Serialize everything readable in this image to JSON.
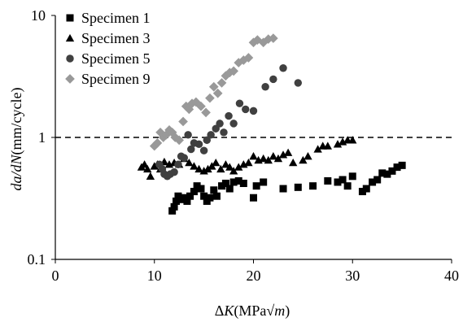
{
  "chart_data": {
    "type": "scatter",
    "xlabel": {
      "prefix": "Δ",
      "var": "K",
      "unit_open": "(MPa",
      "root": "√",
      "root_var": "m",
      "unit_close": ")"
    },
    "ylabel": {
      "var": "da/dN",
      "unit": "(mm/cycle)"
    },
    "xlim": [
      0,
      40
    ],
    "ylim": [
      0.1,
      10
    ],
    "y_scale": "log",
    "x_ticks": [
      "0",
      "10",
      "20",
      "30",
      "40"
    ],
    "y_ticks": [
      "0.1",
      "1",
      "10"
    ],
    "grid": false,
    "legend_position": "top-left",
    "reference_line": {
      "y": 1,
      "style": "dashed",
      "color": "#000000"
    },
    "series": [
      {
        "name": "Specimen 1",
        "marker": "square",
        "color": "#000000",
        "points": [
          [
            11.8,
            0.25
          ],
          [
            12.0,
            0.27
          ],
          [
            12.2,
            0.3
          ],
          [
            12.4,
            0.33
          ],
          [
            12.7,
            0.31
          ],
          [
            13.0,
            0.32
          ],
          [
            13.3,
            0.3
          ],
          [
            13.6,
            0.33
          ],
          [
            14.0,
            0.36
          ],
          [
            14.3,
            0.4
          ],
          [
            14.7,
            0.38
          ],
          [
            15.0,
            0.33
          ],
          [
            15.3,
            0.3
          ],
          [
            15.6,
            0.32
          ],
          [
            16.0,
            0.37
          ],
          [
            16.3,
            0.33
          ],
          [
            16.8,
            0.4
          ],
          [
            17.2,
            0.42
          ],
          [
            17.6,
            0.38
          ],
          [
            18.0,
            0.43
          ],
          [
            18.5,
            0.44
          ],
          [
            19.0,
            0.42
          ],
          [
            20.0,
            0.32
          ],
          [
            20.3,
            0.4
          ],
          [
            21.0,
            0.43
          ],
          [
            23.0,
            0.38
          ],
          [
            24.5,
            0.39
          ],
          [
            26.0,
            0.4
          ],
          [
            27.5,
            0.44
          ],
          [
            28.5,
            0.43
          ],
          [
            29.0,
            0.45
          ],
          [
            29.5,
            0.4
          ],
          [
            30.0,
            0.48
          ],
          [
            31.0,
            0.36
          ],
          [
            31.4,
            0.38
          ],
          [
            32.0,
            0.43
          ],
          [
            32.5,
            0.45
          ],
          [
            33.0,
            0.51
          ],
          [
            33.5,
            0.5
          ],
          [
            34.0,
            0.53
          ],
          [
            34.5,
            0.57
          ],
          [
            35.0,
            0.59
          ]
        ]
      },
      {
        "name": "Specimen 3",
        "marker": "triangle",
        "color": "#000000",
        "points": [
          [
            8.7,
            0.57
          ],
          [
            9.0,
            0.6
          ],
          [
            9.3,
            0.55
          ],
          [
            9.6,
            0.48
          ],
          [
            10.0,
            0.58
          ],
          [
            10.3,
            0.6
          ],
          [
            10.6,
            0.55
          ],
          [
            11.0,
            0.63
          ],
          [
            11.5,
            0.6
          ],
          [
            12.0,
            0.62
          ],
          [
            12.5,
            0.6
          ],
          [
            13.0,
            0.67
          ],
          [
            13.5,
            0.62
          ],
          [
            14.0,
            0.58
          ],
          [
            14.5,
            0.55
          ],
          [
            15.0,
            0.53
          ],
          [
            15.4,
            0.55
          ],
          [
            15.8,
            0.58
          ],
          [
            16.2,
            0.62
          ],
          [
            16.7,
            0.55
          ],
          [
            17.2,
            0.6
          ],
          [
            17.6,
            0.57
          ],
          [
            18.0,
            0.53
          ],
          [
            18.5,
            0.57
          ],
          [
            19.0,
            0.6
          ],
          [
            19.5,
            0.62
          ],
          [
            20.0,
            0.7
          ],
          [
            20.5,
            0.65
          ],
          [
            21.0,
            0.67
          ],
          [
            21.5,
            0.65
          ],
          [
            22.0,
            0.7
          ],
          [
            22.5,
            0.67
          ],
          [
            23.0,
            0.72
          ],
          [
            23.5,
            0.75
          ],
          [
            24.0,
            0.62
          ],
          [
            25.0,
            0.65
          ],
          [
            25.5,
            0.7
          ],
          [
            26.5,
            0.8
          ],
          [
            27.0,
            0.85
          ],
          [
            27.5,
            0.85
          ],
          [
            28.5,
            0.88
          ],
          [
            29.0,
            0.92
          ],
          [
            29.5,
            0.95
          ],
          [
            30.0,
            0.95
          ]
        ]
      },
      {
        "name": "Specimen 5",
        "marker": "circle",
        "color": "#404040",
        "points": [
          [
            10.5,
            0.6
          ],
          [
            10.8,
            0.55
          ],
          [
            11.0,
            0.5
          ],
          [
            11.3,
            0.48
          ],
          [
            11.6,
            0.5
          ],
          [
            12.0,
            0.52
          ],
          [
            12.4,
            0.6
          ],
          [
            12.7,
            0.7
          ],
          [
            13.0,
            0.68
          ],
          [
            13.4,
            1.05
          ],
          [
            13.7,
            0.8
          ],
          [
            14.0,
            0.9
          ],
          [
            14.5,
            0.88
          ],
          [
            15.0,
            0.78
          ],
          [
            15.3,
            0.95
          ],
          [
            15.7,
            1.05
          ],
          [
            16.2,
            1.18
          ],
          [
            16.6,
            1.3
          ],
          [
            17.0,
            1.1
          ],
          [
            17.5,
            1.5
          ],
          [
            18.0,
            1.3
          ],
          [
            18.6,
            1.9
          ],
          [
            19.2,
            1.7
          ],
          [
            20.0,
            1.65
          ],
          [
            21.2,
            2.6
          ],
          [
            22.0,
            3.0
          ],
          [
            23.0,
            3.7
          ],
          [
            24.5,
            2.8
          ]
        ]
      },
      {
        "name": "Specimen 9",
        "marker": "diamond",
        "color": "#999999",
        "points": [
          [
            10.0,
            0.85
          ],
          [
            10.3,
            0.9
          ],
          [
            10.6,
            1.1
          ],
          [
            10.9,
            1.0
          ],
          [
            11.2,
            1.05
          ],
          [
            11.5,
            1.15
          ],
          [
            11.8,
            1.1
          ],
          [
            12.1,
            1.0
          ],
          [
            12.5,
            0.95
          ],
          [
            12.9,
            1.35
          ],
          [
            13.2,
            1.8
          ],
          [
            13.5,
            1.7
          ],
          [
            13.8,
            1.9
          ],
          [
            14.2,
            1.95
          ],
          [
            14.7,
            1.8
          ],
          [
            15.2,
            1.6
          ],
          [
            15.6,
            2.1
          ],
          [
            16.0,
            2.6
          ],
          [
            16.4,
            2.3
          ],
          [
            16.8,
            2.8
          ],
          [
            17.2,
            3.2
          ],
          [
            17.6,
            3.4
          ],
          [
            18.0,
            3.5
          ],
          [
            18.5,
            4.1
          ],
          [
            19.0,
            4.3
          ],
          [
            19.5,
            4.5
          ],
          [
            20.0,
            6.0
          ],
          [
            20.4,
            6.3
          ],
          [
            21.0,
            6.0
          ],
          [
            21.5,
            6.4
          ],
          [
            22.0,
            6.5
          ]
        ]
      }
    ]
  }
}
